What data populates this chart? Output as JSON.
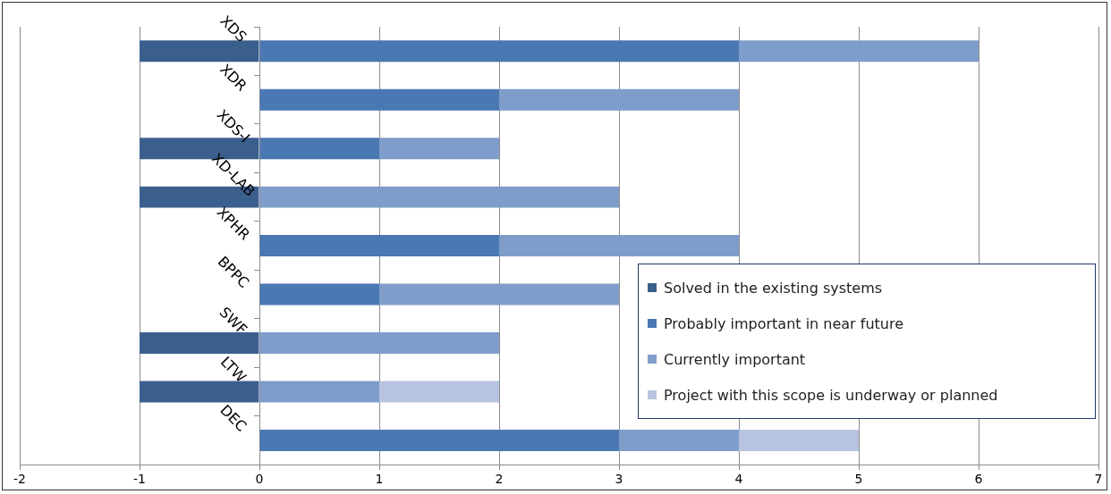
{
  "chart_data": {
    "type": "bar",
    "orientation": "horizontal",
    "stacked": true,
    "categories": [
      "XDS",
      "XDR",
      "XDS-I",
      "XD-LAB",
      "XPHR",
      "BPPC",
      "SWF",
      "LTW",
      "DEC"
    ],
    "series": [
      {
        "name": "Solved in the existing systems",
        "color": "#3b5f8c",
        "values": [
          -1,
          null,
          -1,
          -1,
          null,
          null,
          -1,
          -1,
          null
        ]
      },
      {
        "name": "Probably important in near future",
        "color": "#4a78b2",
        "values": [
          4,
          2,
          1,
          null,
          2,
          1,
          null,
          null,
          3
        ]
      },
      {
        "name": "Currently important",
        "color": "#7f9dca",
        "values": [
          2,
          2,
          1,
          3,
          2,
          2,
          2,
          1,
          1
        ]
      },
      {
        "name": "Project with this scope is underway or planned",
        "color": "#b7c4df",
        "values": [
          null,
          null,
          null,
          null,
          null,
          null,
          null,
          1,
          1
        ]
      }
    ],
    "xlim": [
      -2,
      7
    ],
    "xticks": [
      -2,
      -1,
      0,
      1,
      2,
      3,
      4,
      5,
      6,
      7
    ],
    "grid": "x",
    "legend": "bottom right"
  }
}
